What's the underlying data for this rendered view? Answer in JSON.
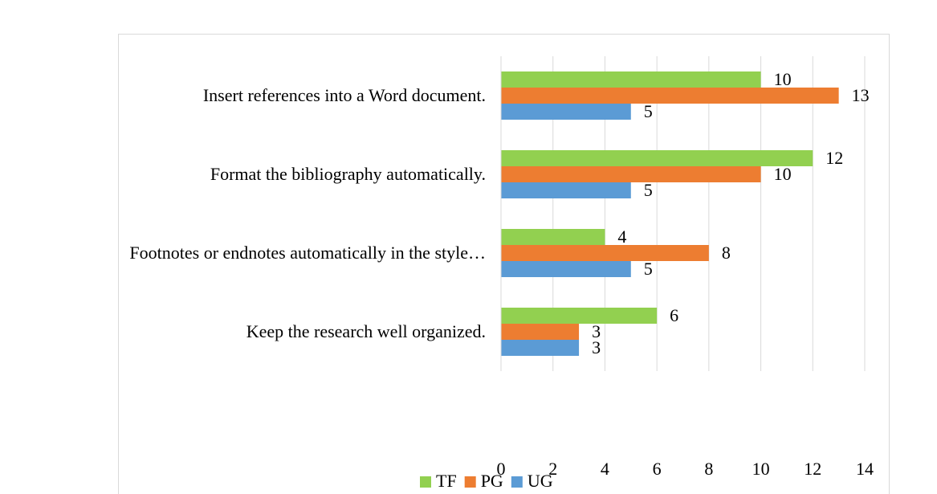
{
  "chart_data": {
    "type": "bar",
    "orientation": "horizontal",
    "categories": [
      "Insert references into a Word document.",
      "Format the bibliography automatically.",
      "Footnotes or endnotes automatically in the style…",
      "Keep the research well organized."
    ],
    "series": [
      {
        "name": "TF",
        "color": "#92d050",
        "values": [
          10,
          12,
          4,
          6
        ]
      },
      {
        "name": "PG",
        "color": "#ed7d31",
        "values": [
          13,
          10,
          8,
          3
        ]
      },
      {
        "name": "UG",
        "color": "#5b9bd5",
        "values": [
          5,
          5,
          5,
          3
        ]
      }
    ],
    "xlim": [
      0,
      14
    ],
    "xticks": [
      0,
      2,
      4,
      6,
      8,
      10,
      12,
      14
    ],
    "grid": true,
    "legend": "bottom"
  }
}
